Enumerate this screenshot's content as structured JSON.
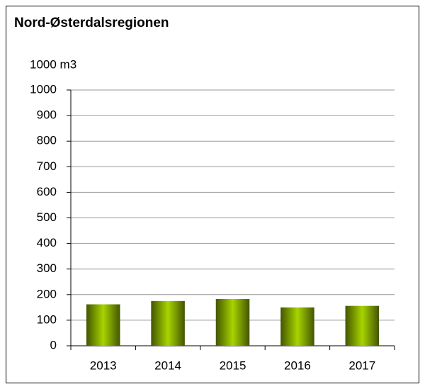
{
  "chart_data": {
    "type": "bar",
    "title": "Nord-Østerdalsregionen",
    "y_label": "1000 m3",
    "categories": [
      "2013",
      "2014",
      "2015",
      "2016",
      "2017"
    ],
    "values": [
      162,
      175,
      183,
      150,
      156
    ],
    "color": "#a8d400",
    "ylim": [
      0,
      1000
    ],
    "yticks": [
      0,
      100,
      200,
      300,
      400,
      500,
      600,
      700,
      800,
      900,
      1000
    ],
    "grid": true
  }
}
